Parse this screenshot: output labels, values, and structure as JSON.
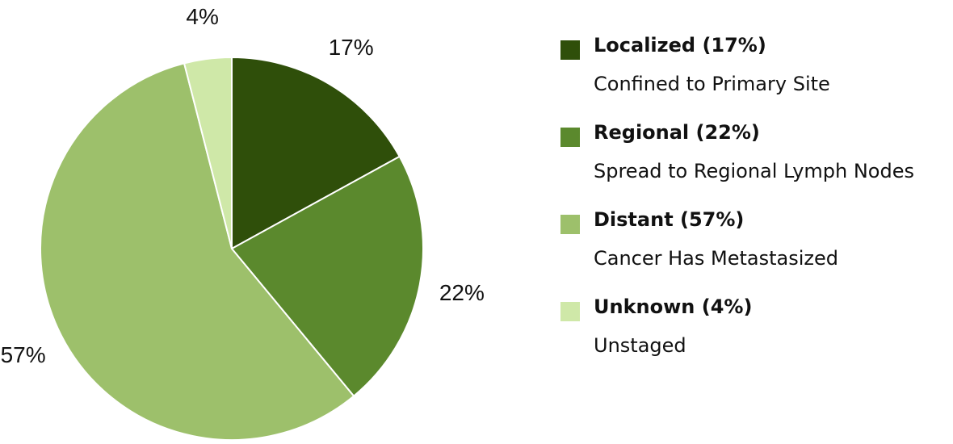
{
  "chart_data": {
    "type": "pie",
    "start_angle_deg": 0,
    "direction": "clockwise",
    "slices": [
      {
        "label": "17%",
        "value": 17,
        "color": "#2f4f0a"
      },
      {
        "label": "22%",
        "value": 22,
        "color": "#5b892d"
      },
      {
        "label": "57%",
        "value": 57,
        "color": "#9dc06b"
      },
      {
        "label": "4%",
        "value": 4,
        "color": "#cfe8a8"
      }
    ],
    "legend_placement": "right",
    "legend": [
      {
        "title": "Localized (17%)",
        "description": "Confined to Primary Site"
      },
      {
        "title": "Regional (22%)",
        "description": "Spread to Regional Lymph Nodes"
      },
      {
        "title": "Distant (57%)",
        "description": "Cancer Has Metastasized"
      },
      {
        "title": "Unknown (4%)",
        "description": "Unstaged"
      }
    ]
  }
}
